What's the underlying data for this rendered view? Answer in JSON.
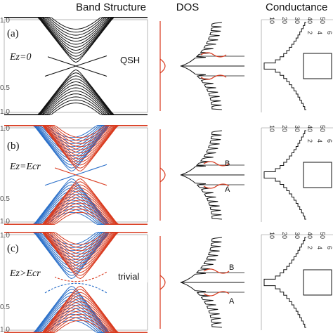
{
  "headers": {
    "band": "Band Structure",
    "dos": "DOS",
    "conductance": "Conductance"
  },
  "panels": [
    {
      "label": "(a)",
      "condition": "Ez=0",
      "phase": "QSH",
      "dos_markers": []
    },
    {
      "label": "(b)",
      "condition": "Ez=Ecr",
      "phase": "",
      "dos_markers": [
        "B",
        "A"
      ]
    },
    {
      "label": "(c)",
      "condition": "Ez>Ecr",
      "phase": "trivial",
      "dos_markers": [
        "B",
        "A"
      ]
    }
  ],
  "band_ytick_labels": [
    [
      "1.0",
      "0.5",
      "1.0"
    ],
    [
      "1.0",
      "0.5",
      "1.0"
    ],
    [
      "1.0",
      "0.5",
      "1.0"
    ]
  ],
  "conductance_ticks": {
    "outer": [
      "10",
      "20",
      "30",
      "40",
      "50"
    ],
    "inner": [
      "2",
      "4",
      "6"
    ]
  },
  "colors": {
    "spin_up": "#d93a1e",
    "spin_down": "#2a6fc9",
    "degenerate": "#111111",
    "dos_red": "#d93a1e"
  }
}
